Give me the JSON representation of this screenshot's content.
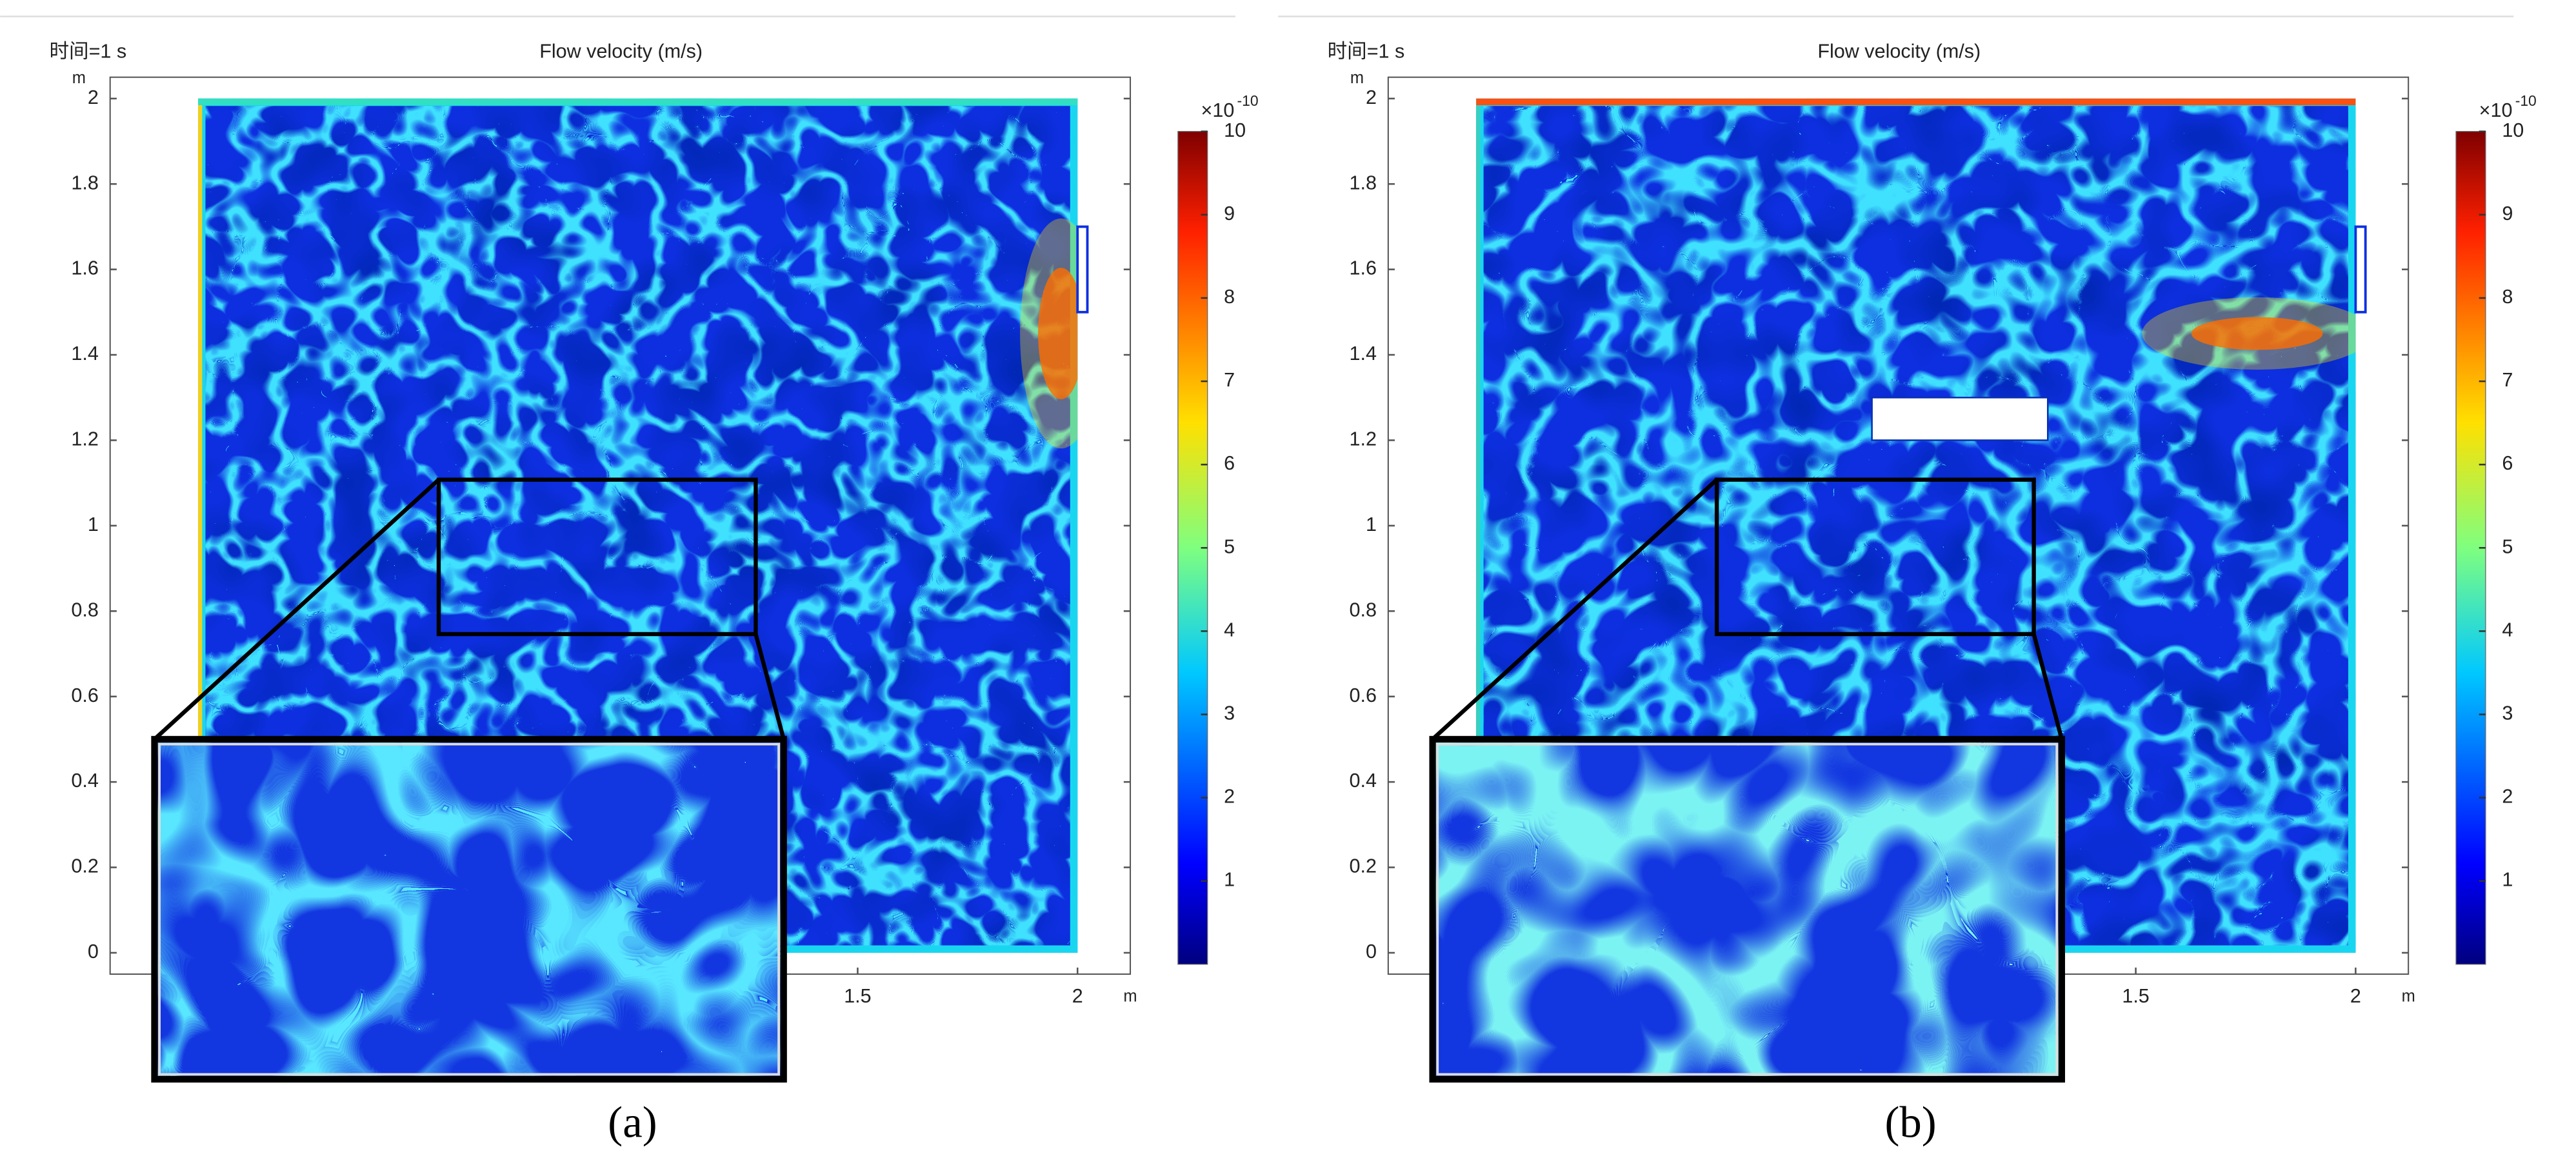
{
  "chart_data": [
    {
      "type": "field",
      "time_label": "时间=1 s",
      "title": "Flow velocity (m/s)",
      "panel_label": "(a)",
      "x_unit": "m",
      "y_unit": "m",
      "xlim": [
        -0.2,
        2.12
      ],
      "xticks": [
        1.5,
        2
      ],
      "ylim": [
        -0.05,
        2.05
      ],
      "yticks": [
        0,
        0.2,
        0.4,
        0.6,
        0.8,
        1,
        1.2,
        1.4,
        1.6,
        1.8,
        2
      ],
      "clim": [
        0,
        10
      ],
      "cticks": [
        1,
        2,
        3,
        4,
        5,
        6,
        7,
        8,
        9,
        10
      ],
      "color_exponent_base": "×10",
      "color_exponent": "-10",
      "obstacle": false
    },
    {
      "type": "field",
      "time_label": "时间=1 s",
      "title": "Flow velocity (m/s)",
      "panel_label": "(b)",
      "x_unit": "m",
      "y_unit": "m",
      "xlim": [
        -0.2,
        2.12
      ],
      "xticks": [
        1.5,
        2
      ],
      "ylim": [
        -0.05,
        2.05
      ],
      "yticks": [
        0,
        0.2,
        0.4,
        0.6,
        0.8,
        1,
        1.2,
        1.4,
        1.6,
        1.8,
        2
      ],
      "clim": [
        0,
        10
      ],
      "cticks": [
        1,
        2,
        3,
        4,
        5,
        6,
        7,
        8,
        9,
        10
      ],
      "color_exponent_base": "×10",
      "color_exponent": "-10",
      "obstacle": true
    }
  ]
}
